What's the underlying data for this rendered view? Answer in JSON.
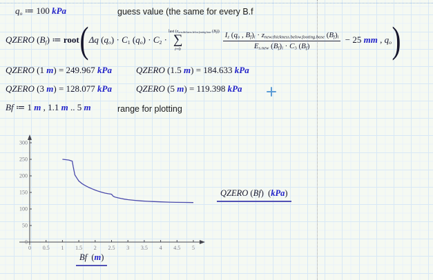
{
  "page": {
    "bg": "#f5f9f2",
    "grid_major_color": "#d8e8f6",
    "grid_minor_color": "#eaf2f9",
    "unit_color": "#2020c8",
    "curve_color": "#4949ab",
    "underline_color": "#5151b5",
    "cursor_color": "#5b9bd5"
  },
  "regions": {
    "qo_def": {
      "tokens": [
        {
          "t": "q",
          "k": "var"
        },
        {
          "t": "o",
          "k": "sub"
        },
        {
          "t": " ≔ ",
          "k": "op"
        },
        {
          "t": "100",
          "k": "num"
        },
        {
          "t": " kPa",
          "k": "unit"
        }
      ]
    },
    "guess_comment": "guess value (the same for every B.f",
    "range_def": {
      "tokens": [
        {
          "t": "Bf",
          "k": "var"
        },
        {
          "t": " ≔ ",
          "k": "op"
        },
        {
          "t": "1",
          "k": "num"
        },
        {
          "t": " m",
          "k": "unit"
        },
        {
          "t": " , ",
          "k": "op"
        },
        {
          "t": "1.1",
          "k": "num"
        },
        {
          "t": " m",
          "k": "unit"
        },
        {
          "t": " .. ",
          "k": "op"
        },
        {
          "t": "5",
          "k": "num"
        },
        {
          "t": " m",
          "k": "unit"
        }
      ]
    },
    "range_comment": "range for plotting",
    "results": [
      {
        "tokens": [
          {
            "t": "QZERO",
            "k": "var"
          },
          {
            "t": " (",
            "k": "op"
          },
          {
            "t": "1",
            "k": "num"
          },
          {
            "t": " m",
            "k": "unit"
          },
          {
            "t": ") ",
            "k": "op"
          },
          {
            "t": "= ",
            "k": "op"
          },
          {
            "t": "249.967",
            "k": "num"
          },
          {
            "t": " kPa",
            "k": "unit"
          }
        ]
      },
      {
        "tokens": [
          {
            "t": "QZERO",
            "k": "var"
          },
          {
            "t": " (",
            "k": "op"
          },
          {
            "t": "1.5",
            "k": "num"
          },
          {
            "t": " m",
            "k": "unit"
          },
          {
            "t": ") ",
            "k": "op"
          },
          {
            "t": "= ",
            "k": "op"
          },
          {
            "t": "184.633",
            "k": "num"
          },
          {
            "t": " kPa",
            "k": "unit"
          }
        ]
      },
      {
        "tokens": [
          {
            "t": "QZERO",
            "k": "var"
          },
          {
            "t": " (",
            "k": "op"
          },
          {
            "t": "3",
            "k": "num"
          },
          {
            "t": " m",
            "k": "unit"
          },
          {
            "t": ") ",
            "k": "op"
          },
          {
            "t": "= ",
            "k": "op"
          },
          {
            "t": "128.077",
            "k": "num"
          },
          {
            "t": " kPa",
            "k": "unit"
          }
        ]
      },
      {
        "tokens": [
          {
            "t": "QZERO",
            "k": "var"
          },
          {
            "t": " (",
            "k": "op"
          },
          {
            "t": "5",
            "k": "num"
          },
          {
            "t": " m",
            "k": "unit"
          },
          {
            "t": ") ",
            "k": "op"
          },
          {
            "t": "= ",
            "k": "op"
          },
          {
            "t": "119.398",
            "k": "num"
          },
          {
            "t": " kPa",
            "k": "unit"
          }
        ]
      }
    ]
  },
  "equation": {
    "lhs": [
      {
        "t": "QZERO",
        "k": "var"
      },
      {
        "t": " (",
        "k": "op"
      },
      {
        "t": "B",
        "k": "var"
      },
      {
        "t": "f",
        "k": "sub"
      },
      {
        "t": ") ",
        "k": "op"
      },
      {
        "t": "≔ ",
        "k": "op"
      },
      {
        "t": "root",
        "k": "kw"
      }
    ],
    "open_paren": "(",
    "pre": [
      {
        "t": "Δq",
        "k": "var"
      },
      {
        "t": " (",
        "k": "op"
      },
      {
        "t": "q",
        "k": "var"
      },
      {
        "t": "o",
        "k": "sub"
      },
      {
        "t": ") ",
        "k": "op"
      },
      {
        "t": "· ",
        "k": "op"
      },
      {
        "t": "C",
        "k": "var"
      },
      {
        "t": "1",
        "k": "subn"
      },
      {
        "t": " (",
        "k": "op"
      },
      {
        "t": "q",
        "k": "var"
      },
      {
        "t": "o",
        "k": "sub"
      },
      {
        "t": ") ",
        "k": "op"
      },
      {
        "t": "· ",
        "k": "op"
      },
      {
        "t": "C",
        "k": "var"
      },
      {
        "t": "2",
        "k": "subn"
      },
      {
        "t": " ·",
        "k": "op"
      }
    ],
    "sum_upper": [
      {
        "t": "last ",
        "k": "num"
      },
      {
        "t": "(",
        "k": "op"
      },
      {
        "t": "z",
        "k": "var"
      },
      {
        "t": "new.thickness.below.footing.base",
        "k": "sub"
      },
      {
        "t": " (",
        "k": "op"
      },
      {
        "t": "B",
        "k": "var"
      },
      {
        "t": "f",
        "k": "sub"
      },
      {
        "t": "))",
        "k": "op"
      }
    ],
    "sigma": "∑",
    "sum_lower": [
      {
        "t": "i",
        "k": "var"
      },
      {
        "t": "=0",
        "k": "num"
      }
    ],
    "frac_num": [
      {
        "t": "I",
        "k": "var"
      },
      {
        "t": "z",
        "k": "sub"
      },
      {
        "t": " (",
        "k": "op"
      },
      {
        "t": "q",
        "k": "var"
      },
      {
        "t": "o",
        "k": "sub"
      },
      {
        "t": " , ",
        "k": "op"
      },
      {
        "t": "B",
        "k": "var"
      },
      {
        "t": "f",
        "k": "sub"
      },
      {
        "t": ")",
        "k": "op"
      },
      {
        "t": "i",
        "k": "sub"
      },
      {
        "t": " · ",
        "k": "op"
      },
      {
        "t": "z",
        "k": "var"
      },
      {
        "t": "new.thickness.below.footing.base",
        "k": "sub"
      },
      {
        "t": " (",
        "k": "op"
      },
      {
        "t": "B",
        "k": "var"
      },
      {
        "t": "f",
        "k": "sub"
      },
      {
        "t": ")",
        "k": "op"
      },
      {
        "t": "i",
        "k": "sub"
      }
    ],
    "frac_den": [
      {
        "t": "E",
        "k": "var"
      },
      {
        "t": "s.new",
        "k": "sub"
      },
      {
        "t": " (",
        "k": "op"
      },
      {
        "t": "B",
        "k": "var"
      },
      {
        "t": "f",
        "k": "sub"
      },
      {
        "t": ")",
        "k": "op"
      },
      {
        "t": "i",
        "k": "sub"
      },
      {
        "t": " · ",
        "k": "op"
      },
      {
        "t": "C",
        "k": "var"
      },
      {
        "t": "3",
        "k": "subn"
      },
      {
        "t": " (",
        "k": "op"
      },
      {
        "t": "B",
        "k": "var"
      },
      {
        "t": "f",
        "k": "sub"
      },
      {
        "t": ")",
        "k": "op"
      }
    ],
    "tail": [
      {
        "t": " − ",
        "k": "op"
      },
      {
        "t": "25",
        "k": "num"
      },
      {
        "t": " mm",
        "k": "unit"
      },
      {
        "t": " , ",
        "k": "op"
      },
      {
        "t": "q",
        "k": "var"
      },
      {
        "t": "o",
        "k": "sub"
      }
    ],
    "close_paren": ")"
  },
  "plot": {
    "ylabel_tokens": [
      {
        "t": "QZERO",
        "k": "var"
      },
      {
        "t": " (",
        "k": "op"
      },
      {
        "t": "Bf",
        "k": "var"
      },
      {
        "t": ")  (",
        "k": "op"
      },
      {
        "t": "kPa",
        "k": "unit"
      },
      {
        "t": ")",
        "k": "op"
      }
    ],
    "xlabel_tokens": [
      {
        "t": "Bf",
        "k": "var"
      },
      {
        "t": "  (",
        "k": "op"
      },
      {
        "t": "m",
        "k": "unit"
      },
      {
        "t": ")",
        "k": "op"
      }
    ]
  },
  "chart_data": {
    "type": "line",
    "title": "",
    "xlabel": "Bf (m)",
    "ylabel": "QZERO(Bf) (kPa)",
    "xlim": [
      0,
      5.5
    ],
    "ylim": [
      0,
      320
    ],
    "grid": false,
    "legend": "none",
    "xticks": [
      0,
      0.5,
      1,
      1.5,
      2,
      2.5,
      3,
      3.5,
      4,
      4.5,
      5
    ],
    "yticks": [
      0,
      50,
      100,
      150,
      200,
      250,
      300
    ],
    "known_points": {
      "x": [
        1,
        1.5,
        3,
        5
      ],
      "y": [
        249.967,
        184.633,
        128.077,
        119.398
      ]
    },
    "x": [
      1,
      1.1,
      1.2,
      1.3,
      1.33,
      1.38,
      1.45,
      1.5,
      1.6,
      1.7,
      1.8,
      1.9,
      2.0,
      2.1,
      2.2,
      2.3,
      2.4,
      2.5,
      2.55,
      2.6,
      2.7,
      2.8,
      2.9,
      3.0,
      3.2,
      3.4,
      3.6,
      3.8,
      4.0,
      4.25,
      4.5,
      4.75,
      5.0
    ],
    "y": [
      250,
      248.9,
      247.7,
      244.5,
      228,
      203,
      192,
      184.6,
      176.5,
      170.5,
      165.5,
      161,
      157,
      153.5,
      150.5,
      148,
      146,
      144.5,
      138.5,
      136,
      133.5,
      131.5,
      129.6,
      128.1,
      126,
      124.4,
      123.2,
      122.2,
      121.4,
      120.6,
      120.1,
      119.7,
      119.4
    ],
    "style": {
      "curve_color": "#4949ab",
      "axis_color": "#45454e",
      "tick_color": "#7b7b85"
    }
  }
}
